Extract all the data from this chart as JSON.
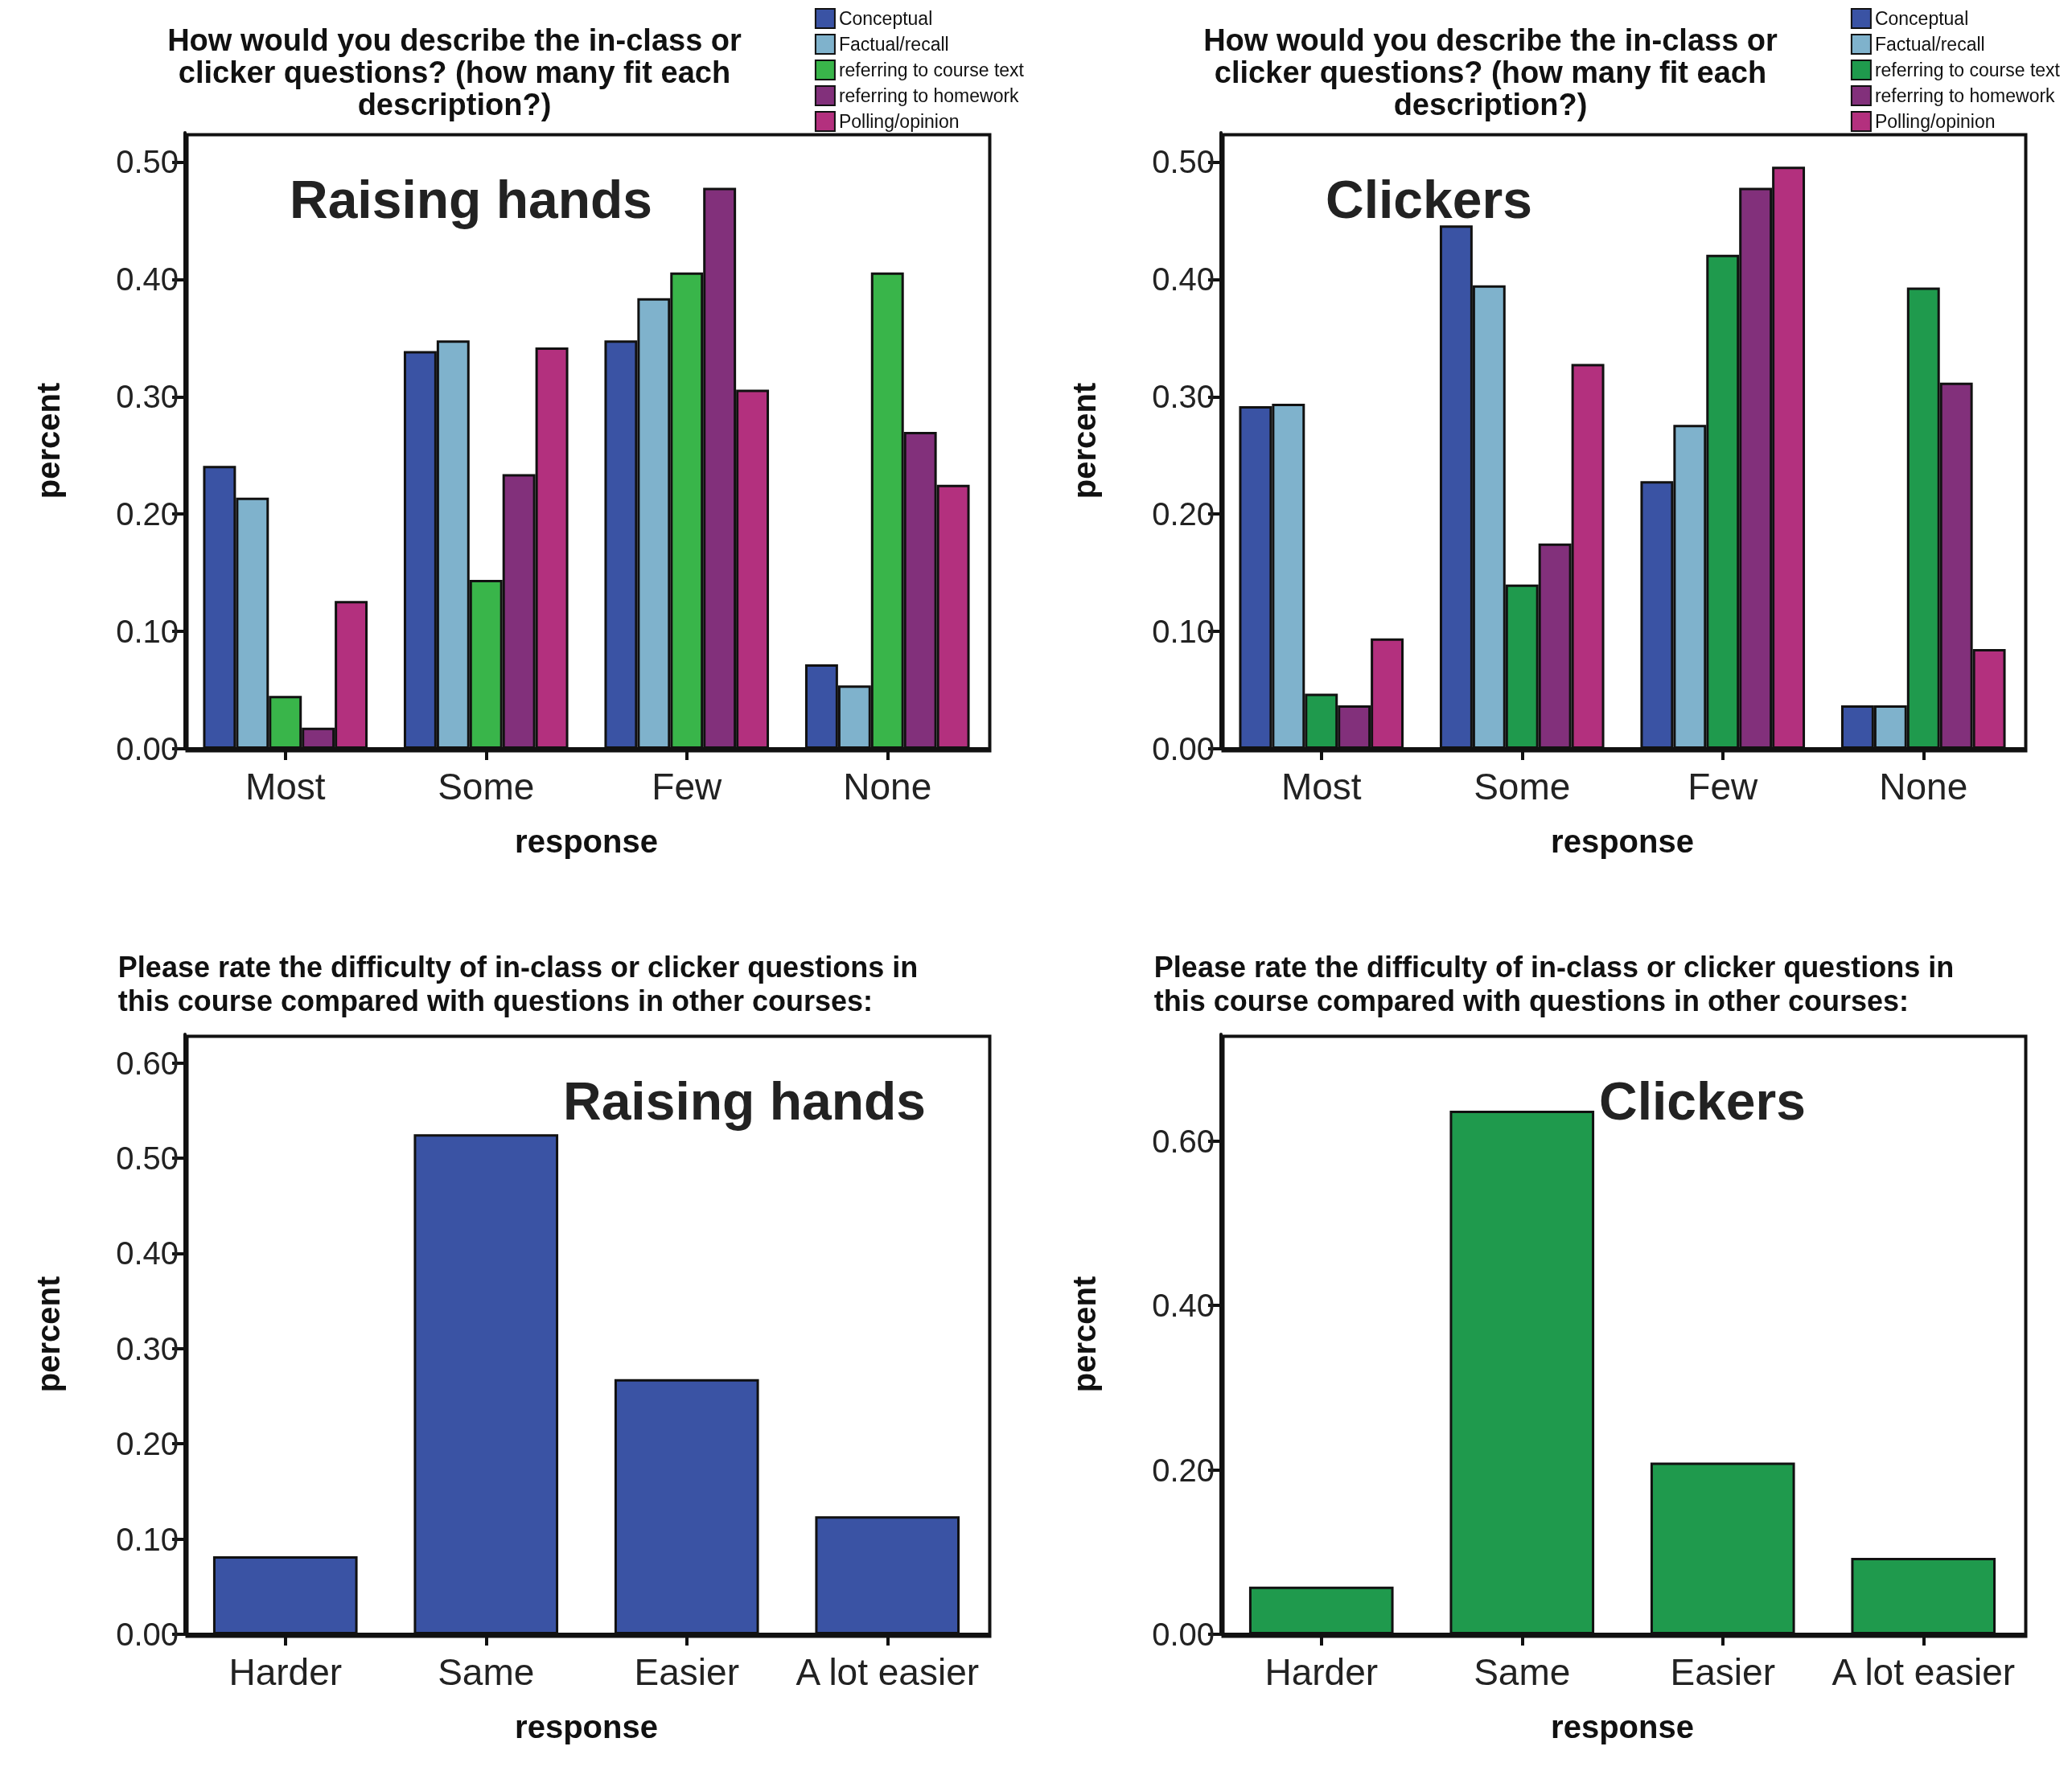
{
  "chart_data": [
    {
      "type": "bar",
      "title": "How would you describe the in-class or clicker questions? (how many fit each description?)",
      "xlabel": "response",
      "ylabel": "percent",
      "annotations": [
        "Raising hands"
      ],
      "categories": [
        "Most",
        "Some",
        "Few",
        "None"
      ],
      "ylim": [
        0,
        0.525
      ],
      "yticks": [
        {
          "value": 0,
          "label": "0.00"
        },
        {
          "value": 0.1,
          "label": "0.10"
        },
        {
          "value": 0.2,
          "label": "0.20"
        },
        {
          "value": 0.3,
          "label": "0.30"
        },
        {
          "value": 0.4,
          "label": "0.40"
        },
        {
          "value": 0.5,
          "label": "0.50"
        }
      ],
      "legend": "top right",
      "series": [
        {
          "name": "Conceptual",
          "color": "#3a53a4",
          "values": [
            0.241,
            0.339,
            0.348,
            0.072
          ]
        },
        {
          "name": "Factual/recall",
          "color": "#7fb2cc",
          "values": [
            0.214,
            0.348,
            0.384,
            0.054
          ]
        },
        {
          "name": "referring to course text",
          "color": "#39b54a",
          "values": [
            0.045,
            0.144,
            0.406,
            0.406
          ]
        },
        {
          "name": "referring to homework",
          "color": "#82307b",
          "values": [
            0.018,
            0.234,
            0.478,
            0.27
          ]
        },
        {
          "name": "Polling/opinion",
          "color": "#b3307e",
          "values": [
            0.126,
            0.342,
            0.306,
            0.225
          ]
        }
      ]
    },
    {
      "type": "bar",
      "title": "How would you describe the in-class or clicker questions? (how many fit each description?)",
      "xlabel": "response",
      "ylabel": "percent",
      "annotations": [
        "Clickers"
      ],
      "categories": [
        "Most",
        "Some",
        "Few",
        "None"
      ],
      "ylim": [
        0,
        0.525
      ],
      "yticks": [
        {
          "value": 0,
          "label": "0.00"
        },
        {
          "value": 0.1,
          "label": "0.10"
        },
        {
          "value": 0.2,
          "label": "0.20"
        },
        {
          "value": 0.3,
          "label": "0.30"
        },
        {
          "value": 0.4,
          "label": "0.40"
        },
        {
          "value": 0.5,
          "label": "0.50"
        }
      ],
      "legend": "top right",
      "series": [
        {
          "name": "Conceptual",
          "color": "#3a53a4",
          "values": [
            0.292,
            0.446,
            0.228,
            0.037
          ]
        },
        {
          "name": "Factual/recall",
          "color": "#7fb2cc",
          "values": [
            0.294,
            0.395,
            0.276,
            0.037
          ]
        },
        {
          "name": "referring to course text",
          "color": "#1f9a4d",
          "values": [
            0.047,
            0.14,
            0.421,
            0.393
          ]
        },
        {
          "name": "referring to homework",
          "color": "#82307b",
          "values": [
            0.037,
            0.175,
            0.478,
            0.312
          ]
        },
        {
          "name": "Polling/opinion",
          "color": "#b3307e",
          "values": [
            0.094,
            0.328,
            0.496,
            0.085
          ]
        }
      ]
    },
    {
      "type": "bar",
      "title": "Please rate the difficulty of in-class or clicker questions in this course compared with questions in other courses:",
      "xlabel": "response",
      "ylabel": "percent",
      "annotations": [
        "Raising hands"
      ],
      "categories": [
        "Harder",
        "Same",
        "Easier",
        "A lot easier"
      ],
      "ylim": [
        0,
        0.63
      ],
      "yticks": [
        {
          "value": 0,
          "label": "0.00"
        },
        {
          "value": 0.1,
          "label": "0.10"
        },
        {
          "value": 0.2,
          "label": "0.20"
        },
        {
          "value": 0.3,
          "label": "0.30"
        },
        {
          "value": 0.4,
          "label": "0.40"
        },
        {
          "value": 0.5,
          "label": "0.50"
        },
        {
          "value": 0.6,
          "label": "0.60"
        }
      ],
      "values": [
        0.082,
        0.525,
        0.268,
        0.124
      ],
      "color": "#3a53a4"
    },
    {
      "type": "bar",
      "title": "Please rate the difficulty of in-class or clicker questions in this course compared with questions in other courses:",
      "xlabel": "response",
      "ylabel": "percent",
      "annotations": [
        "Clickers"
      ],
      "categories": [
        "Harder",
        "Same",
        "Easier",
        "A lot easier"
      ],
      "ylim": [
        0,
        0.73
      ],
      "yticks": [
        {
          "value": 0,
          "label": "0.00"
        },
        {
          "value": 0.2,
          "label": "0.20"
        },
        {
          "value": 0.4,
          "label": "0.40"
        },
        {
          "value": 0.6,
          "label": "0.60"
        }
      ],
      "values": [
        0.058,
        0.637,
        0.209,
        0.093
      ],
      "color": "#1f9a4d"
    }
  ]
}
